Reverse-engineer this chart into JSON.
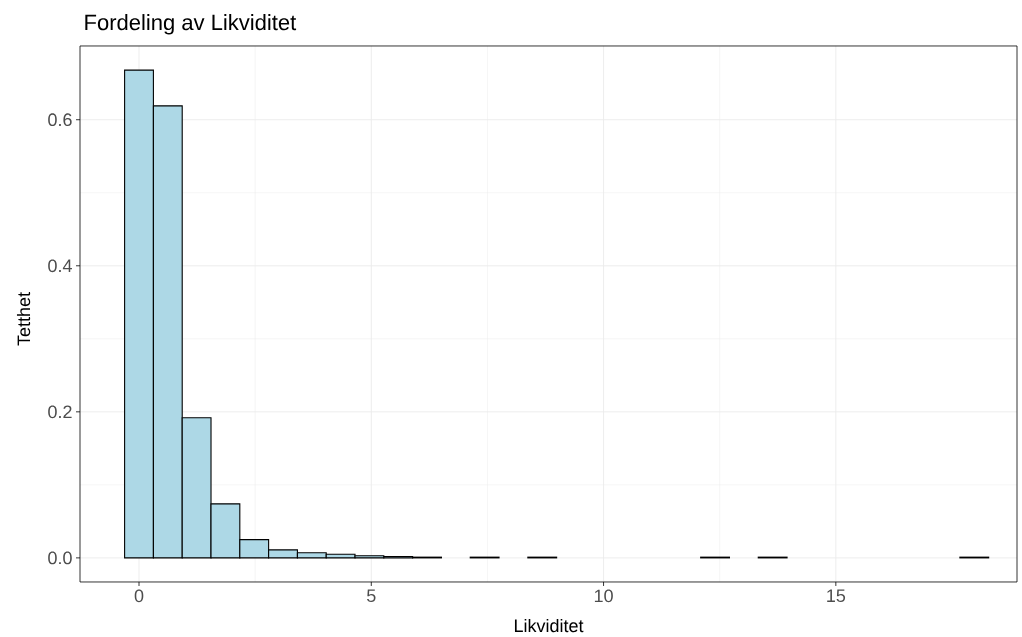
{
  "chart_data": {
    "type": "histogram",
    "title": "Fordeling av Likviditet",
    "xlabel": "Likviditet",
    "ylabel": "Tetthet",
    "bins": [
      -0.31,
      0.31,
      0.93,
      1.55,
      2.17,
      2.79,
      3.41,
      4.03,
      4.65,
      5.27,
      5.89,
      6.51,
      7.13,
      7.75,
      8.37,
      8.99,
      9.61,
      10.23,
      10.85,
      11.47,
      12.09,
      12.71,
      13.33,
      13.95,
      14.57,
      15.19,
      15.81,
      16.43,
      17.05,
      17.67,
      18.29
    ],
    "values": [
      0.668,
      0.619,
      0.192,
      0.074,
      0.025,
      0.011,
      0.007,
      0.005,
      0.003,
      0.002,
      0.001,
      0,
      0.001,
      0,
      0.001,
      0,
      0,
      0,
      0,
      0,
      0.001,
      0,
      0.001,
      0,
      0,
      0,
      0,
      0,
      0,
      0.001
    ],
    "color": "#add8e6",
    "xlim": [
      -1.27,
      18.9
    ],
    "ylim": [
      -0.033,
      0.701
    ],
    "xticks": [
      0,
      5,
      10,
      15
    ],
    "yticks": [
      {
        "value": 0,
        "label": "0.0"
      },
      {
        "value": 0.2,
        "label": "0.2"
      },
      {
        "value": 0.4,
        "label": "0.4"
      },
      {
        "value": 0.6,
        "label": "0.6"
      }
    ],
    "grid": true
  }
}
